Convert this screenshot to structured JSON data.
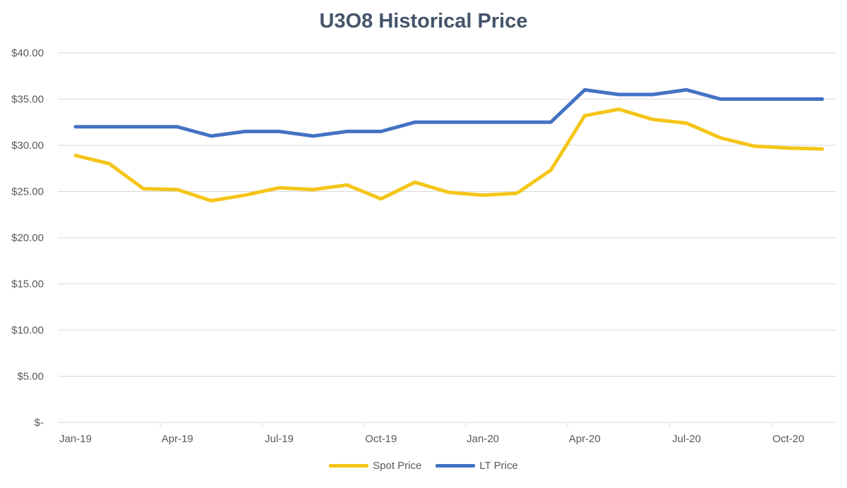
{
  "chart_data": {
    "type": "line",
    "title": "U3O8 Historical Price",
    "xlabel": "",
    "ylabel": "",
    "ylim": [
      0,
      40
    ],
    "yticks": [
      {
        "value": 0,
        "label": "$-"
      },
      {
        "value": 5,
        "label": "$5.00"
      },
      {
        "value": 10,
        "label": "$10.00"
      },
      {
        "value": 15,
        "label": "$15.00"
      },
      {
        "value": 20,
        "label": "$20.00"
      },
      {
        "value": 25,
        "label": "$25.00"
      },
      {
        "value": 30,
        "label": "$30.00"
      },
      {
        "value": 35,
        "label": "$35.00"
      },
      {
        "value": 40,
        "label": "$40.00"
      }
    ],
    "x": [
      "Jan-19",
      "Feb-19",
      "Mar-19",
      "Apr-19",
      "May-19",
      "Jun-19",
      "Jul-19",
      "Aug-19",
      "Sep-19",
      "Oct-19",
      "Nov-19",
      "Dec-19",
      "Jan-20",
      "Feb-20",
      "Mar-20",
      "Apr-20",
      "May-20",
      "Jun-20",
      "Jul-20",
      "Aug-20",
      "Sep-20",
      "Oct-20",
      "Nov-20"
    ],
    "xtick_labels": [
      "Jan-19",
      "Apr-19",
      "Jul-19",
      "Oct-19",
      "Jan-20",
      "Apr-20",
      "Jul-20",
      "Oct-20"
    ],
    "grid": true,
    "legend_position": "bottom",
    "series": [
      {
        "name": "Spot Price",
        "color": "#f5c518",
        "values": [
          28.9,
          28.0,
          25.3,
          25.2,
          24.0,
          24.6,
          25.4,
          25.2,
          25.7,
          24.2,
          26.0,
          24.9,
          24.6,
          24.8,
          27.3,
          33.2,
          33.9,
          32.8,
          32.4,
          30.8,
          29.9,
          29.7,
          29.6
        ]
      },
      {
        "name": "LT Price",
        "color": "#4472c4",
        "values": [
          32.0,
          32.0,
          32.0,
          32.0,
          31.0,
          31.5,
          31.5,
          31.0,
          31.5,
          31.5,
          32.5,
          32.5,
          32.5,
          32.5,
          32.5,
          36.0,
          35.5,
          35.5,
          36.0,
          35.0,
          35.0,
          35.0,
          35.0
        ]
      }
    ]
  },
  "colors": {
    "grid": "#d9d9d9",
    "title": "#44546a",
    "text": "#595959"
  }
}
